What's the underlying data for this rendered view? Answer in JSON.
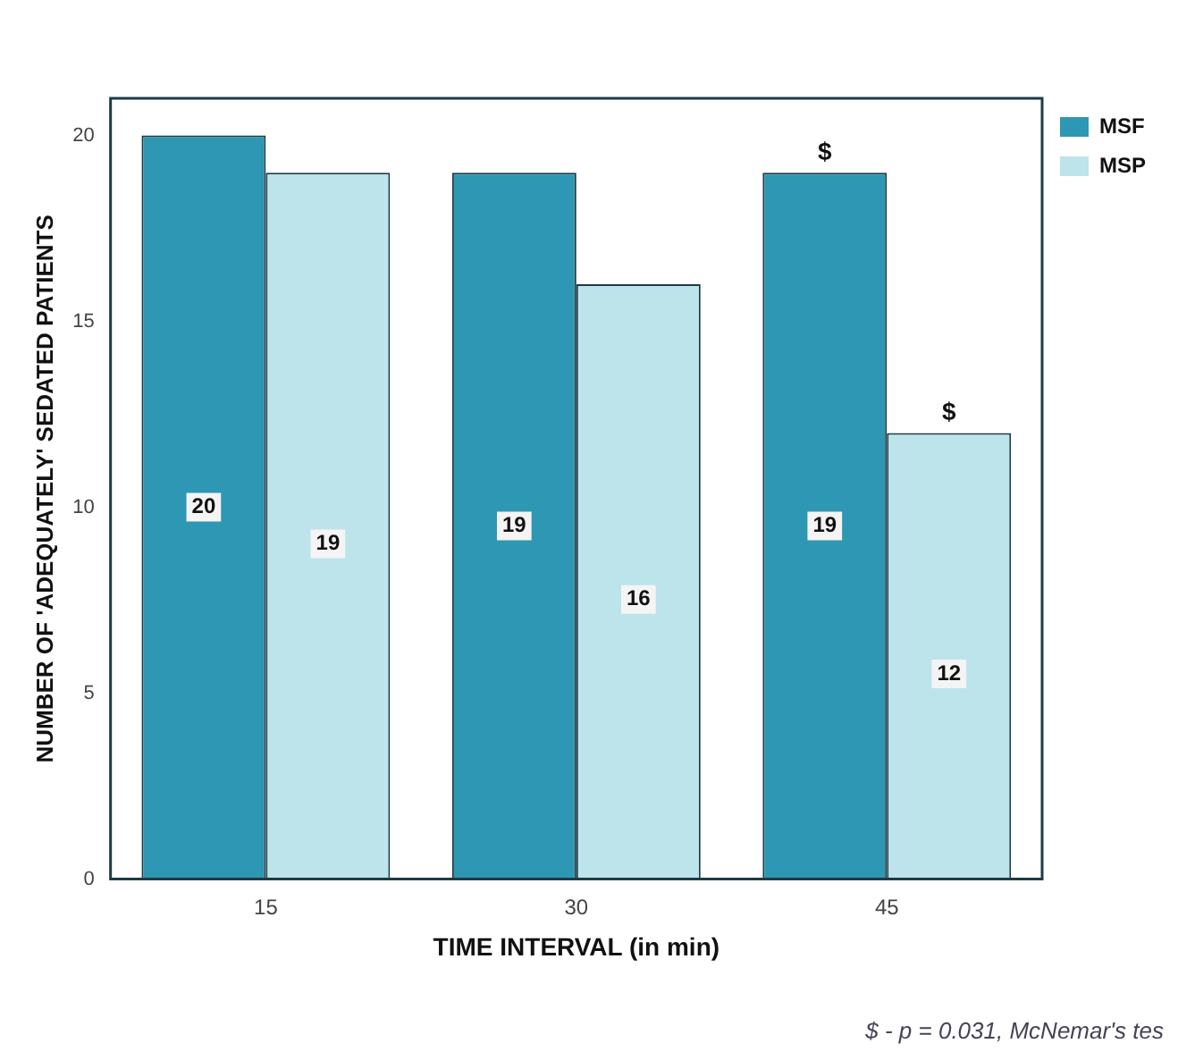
{
  "chart_data": {
    "type": "bar",
    "xlabel": "TIME INTERVAL (in min)",
    "ylabel": "NUMBER OF 'ADEQUATELY' SEDATED PATIENTS",
    "categories": [
      "15",
      "30",
      "45"
    ],
    "series": [
      {
        "name": "MSF",
        "color": "#2e97b3",
        "values": [
          20,
          19,
          19
        ]
      },
      {
        "name": "MSP",
        "color": "#bde4ea",
        "values": [
          19,
          16,
          12
        ]
      }
    ],
    "ylim": [
      0,
      21
    ],
    "yticks": [
      0,
      5,
      10,
      15,
      20
    ],
    "grid": false,
    "legend": "top right",
    "data_labels": true,
    "annotations": [
      {
        "text": "$",
        "x": "45",
        "y": 19
      },
      {
        "text": "$",
        "x": "45",
        "y": 12
      },
      "$ - p = 0.031, McNemar's tes"
    ]
  }
}
